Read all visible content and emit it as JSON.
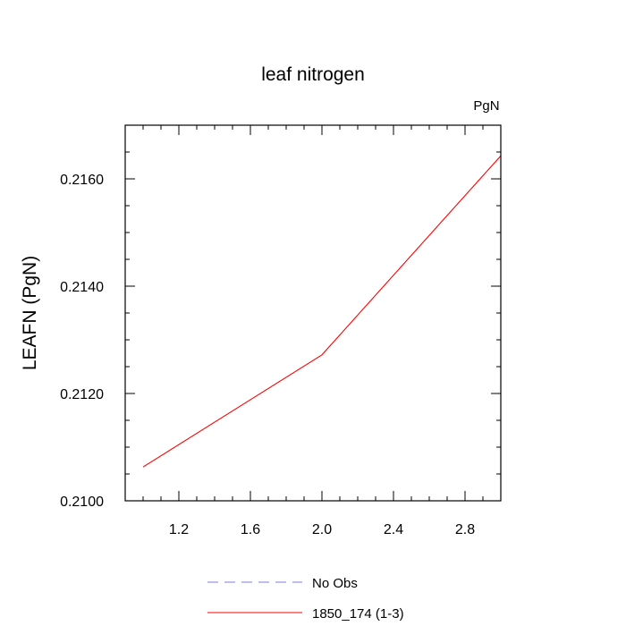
{
  "chart_data": {
    "type": "line",
    "title": "leaf nitrogen",
    "units_label": "PgN",
    "ylabel": "LEAFN  (PgN)",
    "xlabel": "",
    "xlim": [
      0.9,
      3.0
    ],
    "ylim": [
      0.21,
      0.217
    ],
    "xticks": [
      1.2,
      1.6,
      2.0,
      2.4,
      2.8
    ],
    "xtick_labels": [
      "1.2",
      "1.6",
      "2.0",
      "2.4",
      "2.8"
    ],
    "yticks": [
      0.21,
      0.212,
      0.214,
      0.216
    ],
    "ytick_labels": [
      "0.2100",
      "0.2120",
      "0.2140",
      "0.2160"
    ],
    "grid": false,
    "legend_position": "bottom",
    "series": [
      {
        "name": "No Obs",
        "color": "#7b7bdf",
        "dash": "dashed",
        "x": [],
        "y": []
      },
      {
        "name": "1850_174 (1-3)",
        "color": "#ff0000",
        "dash": "solid",
        "x": [
          1.0,
          2.0,
          3.0
        ],
        "y": [
          0.21063,
          0.21272,
          0.21643
        ]
      }
    ]
  }
}
